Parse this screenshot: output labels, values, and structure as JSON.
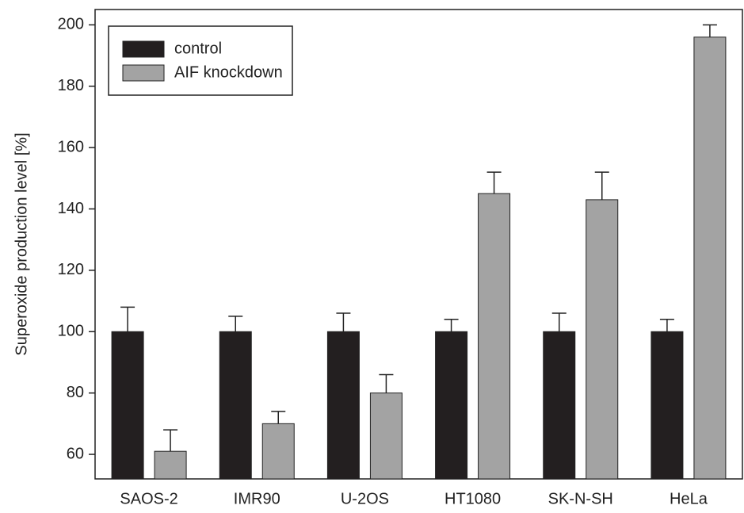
{
  "chart_data": {
    "type": "bar",
    "y_label": "Superoxide production level [%]",
    "categories": [
      "SAOS-2",
      "IMR90",
      "U-2OS",
      "HT1080",
      "SK-N-SH",
      "HeLa"
    ],
    "series": [
      {
        "name": "control",
        "color": "#231f20",
        "values": [
          100,
          100,
          100,
          100,
          100,
          100
        ],
        "errors": [
          8,
          5,
          6,
          4,
          6,
          4
        ]
      },
      {
        "name": "AIF knockdown",
        "color": "#a3a3a3",
        "values": [
          61,
          70,
          80,
          145,
          143,
          196
        ],
        "errors": [
          7,
          4,
          6,
          7,
          9,
          4
        ]
      }
    ],
    "ylim": [
      52,
      205
    ],
    "yticks": [
      60,
      80,
      100,
      120,
      140,
      160,
      180,
      200
    ],
    "legend": "upper left"
  }
}
